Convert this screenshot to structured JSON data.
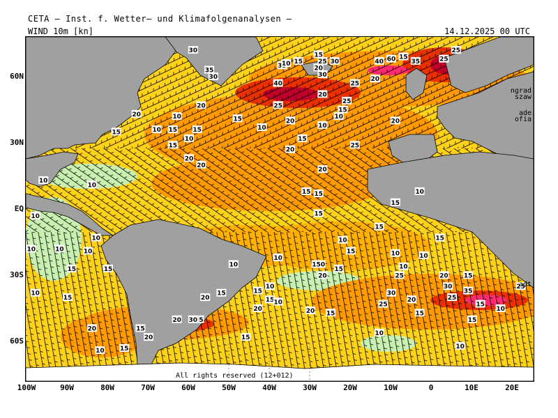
{
  "header": {
    "institute": "CETA – Inst. f. Wetter– und Klimafolgenanalysen –",
    "parameter": "WIND 10m [kn]",
    "valid": "14.12.2025 00 UTC"
  },
  "copyright": "All rights reserved (12+012)",
  "axes": {
    "lat_labels": [
      "60N",
      "30N",
      "EQ",
      "30S",
      "60S"
    ],
    "lon_labels": [
      "100W",
      "90W",
      "80W",
      "70W",
      "60W",
      "50W",
      "40W",
      "30W",
      "20W",
      "10W",
      "0",
      "10E",
      "20E"
    ]
  },
  "city_fragments": [
    "ngrad",
    "szaw",
    "ade",
    "ofia",
    "adt"
  ],
  "speed_labels": [
    {
      "v": "15",
      "lon": -28,
      "lat": 65
    },
    {
      "v": "25",
      "lon": 6,
      "lat": 67
    },
    {
      "v": "30",
      "lon": -59,
      "lat": 67
    },
    {
      "v": "25",
      "lon": 3,
      "lat": 63
    },
    {
      "v": "35",
      "lon": -37,
      "lat": 60
    },
    {
      "v": "10",
      "lon": -36,
      "lat": 61
    },
    {
      "v": "15",
      "lon": -33,
      "lat": 62
    },
    {
      "v": "25",
      "lon": -27,
      "lat": 62
    },
    {
      "v": "30",
      "lon": -24,
      "lat": 62
    },
    {
      "v": "40",
      "lon": -13,
      "lat": 62
    },
    {
      "v": "60",
      "lon": -10,
      "lat": 63
    },
    {
      "v": "15",
      "lon": -7,
      "lat": 64
    },
    {
      "v": "35",
      "lon": -4,
      "lat": 62
    },
    {
      "v": "35",
      "lon": -55,
      "lat": 58
    },
    {
      "v": "30",
      "lon": -54,
      "lat": 55
    },
    {
      "v": "20",
      "lon": -28,
      "lat": 59
    },
    {
      "v": "30",
      "lon": -27,
      "lat": 56
    },
    {
      "v": "40",
      "lon": -38,
      "lat": 52
    },
    {
      "v": "25",
      "lon": -19,
      "lat": 52
    },
    {
      "v": "20",
      "lon": -14,
      "lat": 54
    },
    {
      "v": "20",
      "lon": -27,
      "lat": 47
    },
    {
      "v": "25",
      "lon": -21,
      "lat": 44
    },
    {
      "v": "25",
      "lon": -38,
      "lat": 42
    },
    {
      "v": "15",
      "lon": -22,
      "lat": 40
    },
    {
      "v": "10",
      "lon": -23,
      "lat": 37
    },
    {
      "v": "20",
      "lon": -57,
      "lat": 42
    },
    {
      "v": "20",
      "lon": -73,
      "lat": 38
    },
    {
      "v": "10",
      "lon": -63,
      "lat": 37
    },
    {
      "v": "15",
      "lon": -48,
      "lat": 36
    },
    {
      "v": "20",
      "lon": -35,
      "lat": 35
    },
    {
      "v": "20",
      "lon": -9,
      "lat": 35
    },
    {
      "v": "10",
      "lon": -42,
      "lat": 32
    },
    {
      "v": "10",
      "lon": -27,
      "lat": 33
    },
    {
      "v": "10",
      "lon": -68,
      "lat": 31
    },
    {
      "v": "15",
      "lon": -64,
      "lat": 31
    },
    {
      "v": "15",
      "lon": -58,
      "lat": 31
    },
    {
      "v": "15",
      "lon": -78,
      "lat": 30
    },
    {
      "v": "10",
      "lon": -60,
      "lat": 27
    },
    {
      "v": "15",
      "lon": -32,
      "lat": 27
    },
    {
      "v": "15",
      "lon": -64,
      "lat": 24
    },
    {
      "v": "20",
      "lon": -35,
      "lat": 22
    },
    {
      "v": "25",
      "lon": -19,
      "lat": 24
    },
    {
      "v": "20",
      "lon": -60,
      "lat": 18
    },
    {
      "v": "20",
      "lon": -57,
      "lat": 15
    },
    {
      "v": "20",
      "lon": -27,
      "lat": 13
    },
    {
      "v": "10",
      "lon": -96,
      "lat": 8
    },
    {
      "v": "10",
      "lon": -84,
      "lat": 6
    },
    {
      "v": "15",
      "lon": -31,
      "lat": 3
    },
    {
      "v": "15",
      "lon": -28,
      "lat": 2
    },
    {
      "v": "10",
      "lon": -3,
      "lat": 3
    },
    {
      "v": "15",
      "lon": -28,
      "lat": -7
    },
    {
      "v": "15",
      "lon": -9,
      "lat": -2
    },
    {
      "v": "15",
      "lon": -13,
      "lat": -13
    },
    {
      "v": "10",
      "lon": -98,
      "lat": -8
    },
    {
      "v": "10",
      "lon": -83,
      "lat": -18
    },
    {
      "v": "15",
      "lon": 2,
      "lat": -18
    },
    {
      "v": "10",
      "lon": -99,
      "lat": -23
    },
    {
      "v": "10",
      "lon": -92,
      "lat": -23
    },
    {
      "v": "10",
      "lon": -85,
      "lat": -24
    },
    {
      "v": "10",
      "lon": -22,
      "lat": -19
    },
    {
      "v": "15",
      "lon": -20,
      "lat": -24
    },
    {
      "v": "10",
      "lon": -38,
      "lat": -27
    },
    {
      "v": "10",
      "lon": -9,
      "lat": -25
    },
    {
      "v": "10",
      "lon": -2,
      "lat": -26
    },
    {
      "v": "15",
      "lon": -89,
      "lat": -32
    },
    {
      "v": "15",
      "lon": -80,
      "lat": -32
    },
    {
      "v": "10",
      "lon": -49,
      "lat": -30
    },
    {
      "v": "150",
      "lon": -28,
      "lat": -30
    },
    {
      "v": "15",
      "lon": -23,
      "lat": -32
    },
    {
      "v": "20",
      "lon": -27,
      "lat": -35
    },
    {
      "v": "25",
      "lon": -8,
      "lat": -35
    },
    {
      "v": "20",
      "lon": 3,
      "lat": -35
    },
    {
      "v": "15",
      "lon": 9,
      "lat": -35
    },
    {
      "v": "10",
      "lon": -7,
      "lat": -31
    },
    {
      "v": "10",
      "lon": -40,
      "lat": -40
    },
    {
      "v": "15",
      "lon": -43,
      "lat": -42
    },
    {
      "v": "30",
      "lon": 4,
      "lat": -40
    },
    {
      "v": "35",
      "lon": 9,
      "lat": -42
    },
    {
      "v": "25",
      "lon": 22,
      "lat": -40
    },
    {
      "v": "30",
      "lon": -10,
      "lat": -43
    },
    {
      "v": "25",
      "lon": 5,
      "lat": -45
    },
    {
      "v": "20",
      "lon": -5,
      "lat": -46
    },
    {
      "v": "10",
      "lon": -98,
      "lat": -43
    },
    {
      "v": "15",
      "lon": -90,
      "lat": -45
    },
    {
      "v": "20",
      "lon": -56,
      "lat": -45
    },
    {
      "v": "15",
      "lon": -52,
      "lat": -43
    },
    {
      "v": "15",
      "lon": -40,
      "lat": -46
    },
    {
      "v": "10",
      "lon": -38,
      "lat": -47
    },
    {
      "v": "25",
      "lon": -12,
      "lat": -48
    },
    {
      "v": "20",
      "lon": -43,
      "lat": -50
    },
    {
      "v": "20",
      "lon": -30,
      "lat": -51
    },
    {
      "v": "15",
      "lon": -25,
      "lat": -52
    },
    {
      "v": "15",
      "lon": -3,
      "lat": -52
    },
    {
      "v": "15",
      "lon": 12,
      "lat": -48
    },
    {
      "v": "10",
      "lon": 17,
      "lat": -50
    },
    {
      "v": "15",
      "lon": 10,
      "lat": -55
    },
    {
      "v": "20",
      "lon": -63,
      "lat": -55
    },
    {
      "v": "30",
      "lon": -59,
      "lat": -55
    },
    {
      "v": "5",
      "lon": -57,
      "lat": -55
    },
    {
      "v": "20",
      "lon": -84,
      "lat": -59
    },
    {
      "v": "15",
      "lon": -72,
      "lat": -59
    },
    {
      "v": "20",
      "lon": -70,
      "lat": -63
    },
    {
      "v": "15",
      "lon": -46,
      "lat": -63
    },
    {
      "v": "10",
      "lon": -13,
      "lat": -61
    },
    {
      "v": "10",
      "lon": 7,
      "lat": -67
    },
    {
      "v": "10",
      "lon": -82,
      "lat": -69
    },
    {
      "v": "15",
      "lon": -76,
      "lat": -68
    }
  ]
}
